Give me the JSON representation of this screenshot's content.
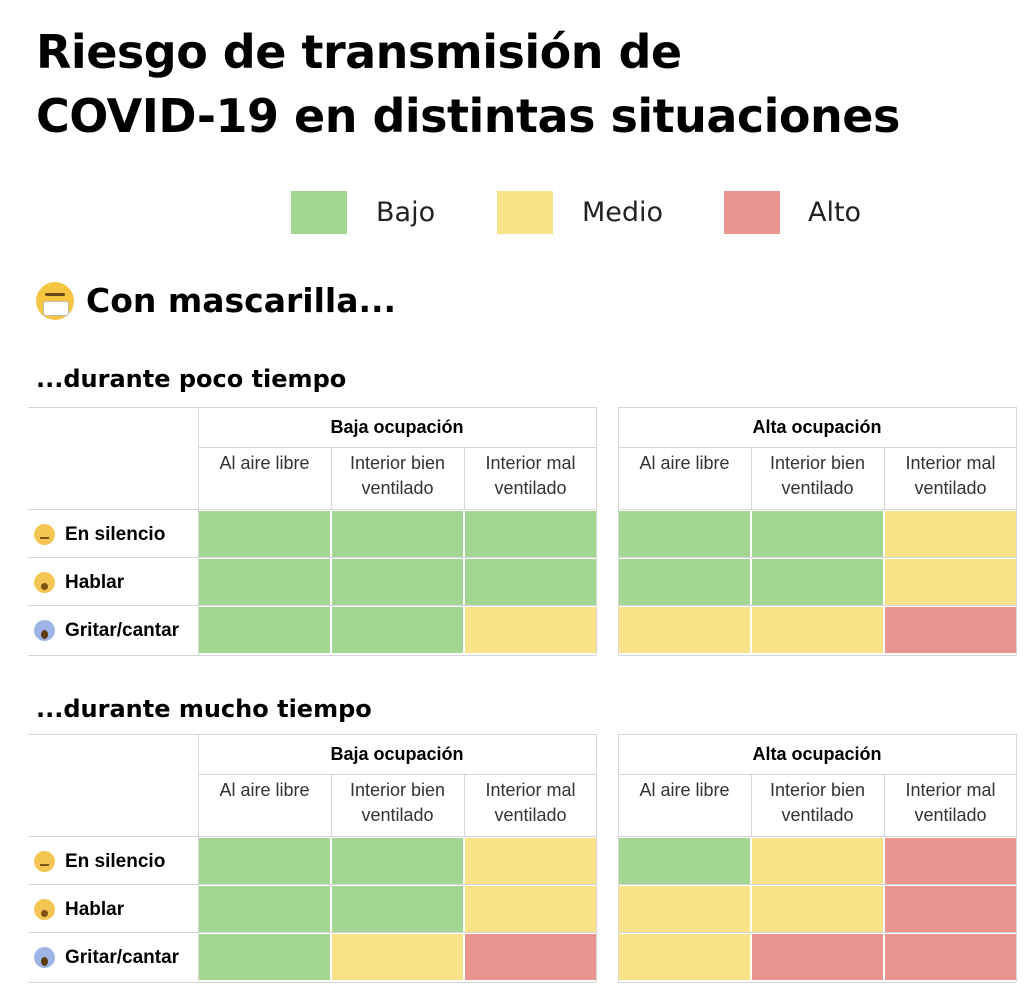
{
  "title": {
    "line1": "Riesgo de transmisión de",
    "line2": "COVID-19 en distintas situaciones"
  },
  "legend": {
    "items": [
      {
        "key": "bajo",
        "label": "Bajo",
        "color": "#a3d593"
      },
      {
        "key": "medio",
        "label": "Medio",
        "color": "#fae289"
      },
      {
        "key": "alto",
        "label": "Alto",
        "color": "#ea9490"
      }
    ]
  },
  "section": {
    "icon": "face-with-medical-mask-icon",
    "heading": "Con mascarilla..."
  },
  "chart_data": [
    {
      "type": "heatmap",
      "title": "...durante poco tiempo",
      "groups": [
        "Baja ocupación",
        "Alta ocupación"
      ],
      "columns": [
        "Al aire libre",
        "Interior bien\nventilado",
        "Interior mal\nventilado"
      ],
      "rows": [
        {
          "label": "En silencio",
          "icon": "face-silence"
        },
        {
          "label": "Hablar",
          "icon": "face-talk"
        },
        {
          "label": "Gritar/cantar",
          "icon": "face-scream"
        }
      ],
      "values": [
        [
          "bajo",
          "bajo",
          "bajo",
          "bajo",
          "bajo",
          "medio"
        ],
        [
          "bajo",
          "bajo",
          "bajo",
          "bajo",
          "bajo",
          "medio"
        ],
        [
          "bajo",
          "bajo",
          "medio",
          "medio",
          "medio",
          "alto"
        ]
      ]
    },
    {
      "type": "heatmap",
      "title": "...durante mucho tiempo",
      "groups": [
        "Baja ocupación",
        "Alta ocupación"
      ],
      "columns": [
        "Al aire libre",
        "Interior bien\nventilado",
        "Interior mal\nventilado"
      ],
      "rows": [
        {
          "label": "En silencio",
          "icon": "face-silence"
        },
        {
          "label": "Hablar",
          "icon": "face-talk"
        },
        {
          "label": "Gritar/cantar",
          "icon": "face-scream"
        }
      ],
      "values": [
        [
          "bajo",
          "bajo",
          "medio",
          "bajo",
          "medio",
          "alto"
        ],
        [
          "bajo",
          "bajo",
          "medio",
          "medio",
          "medio",
          "alto"
        ],
        [
          "bajo",
          "medio",
          "alto",
          "medio",
          "alto",
          "alto"
        ]
      ]
    }
  ]
}
